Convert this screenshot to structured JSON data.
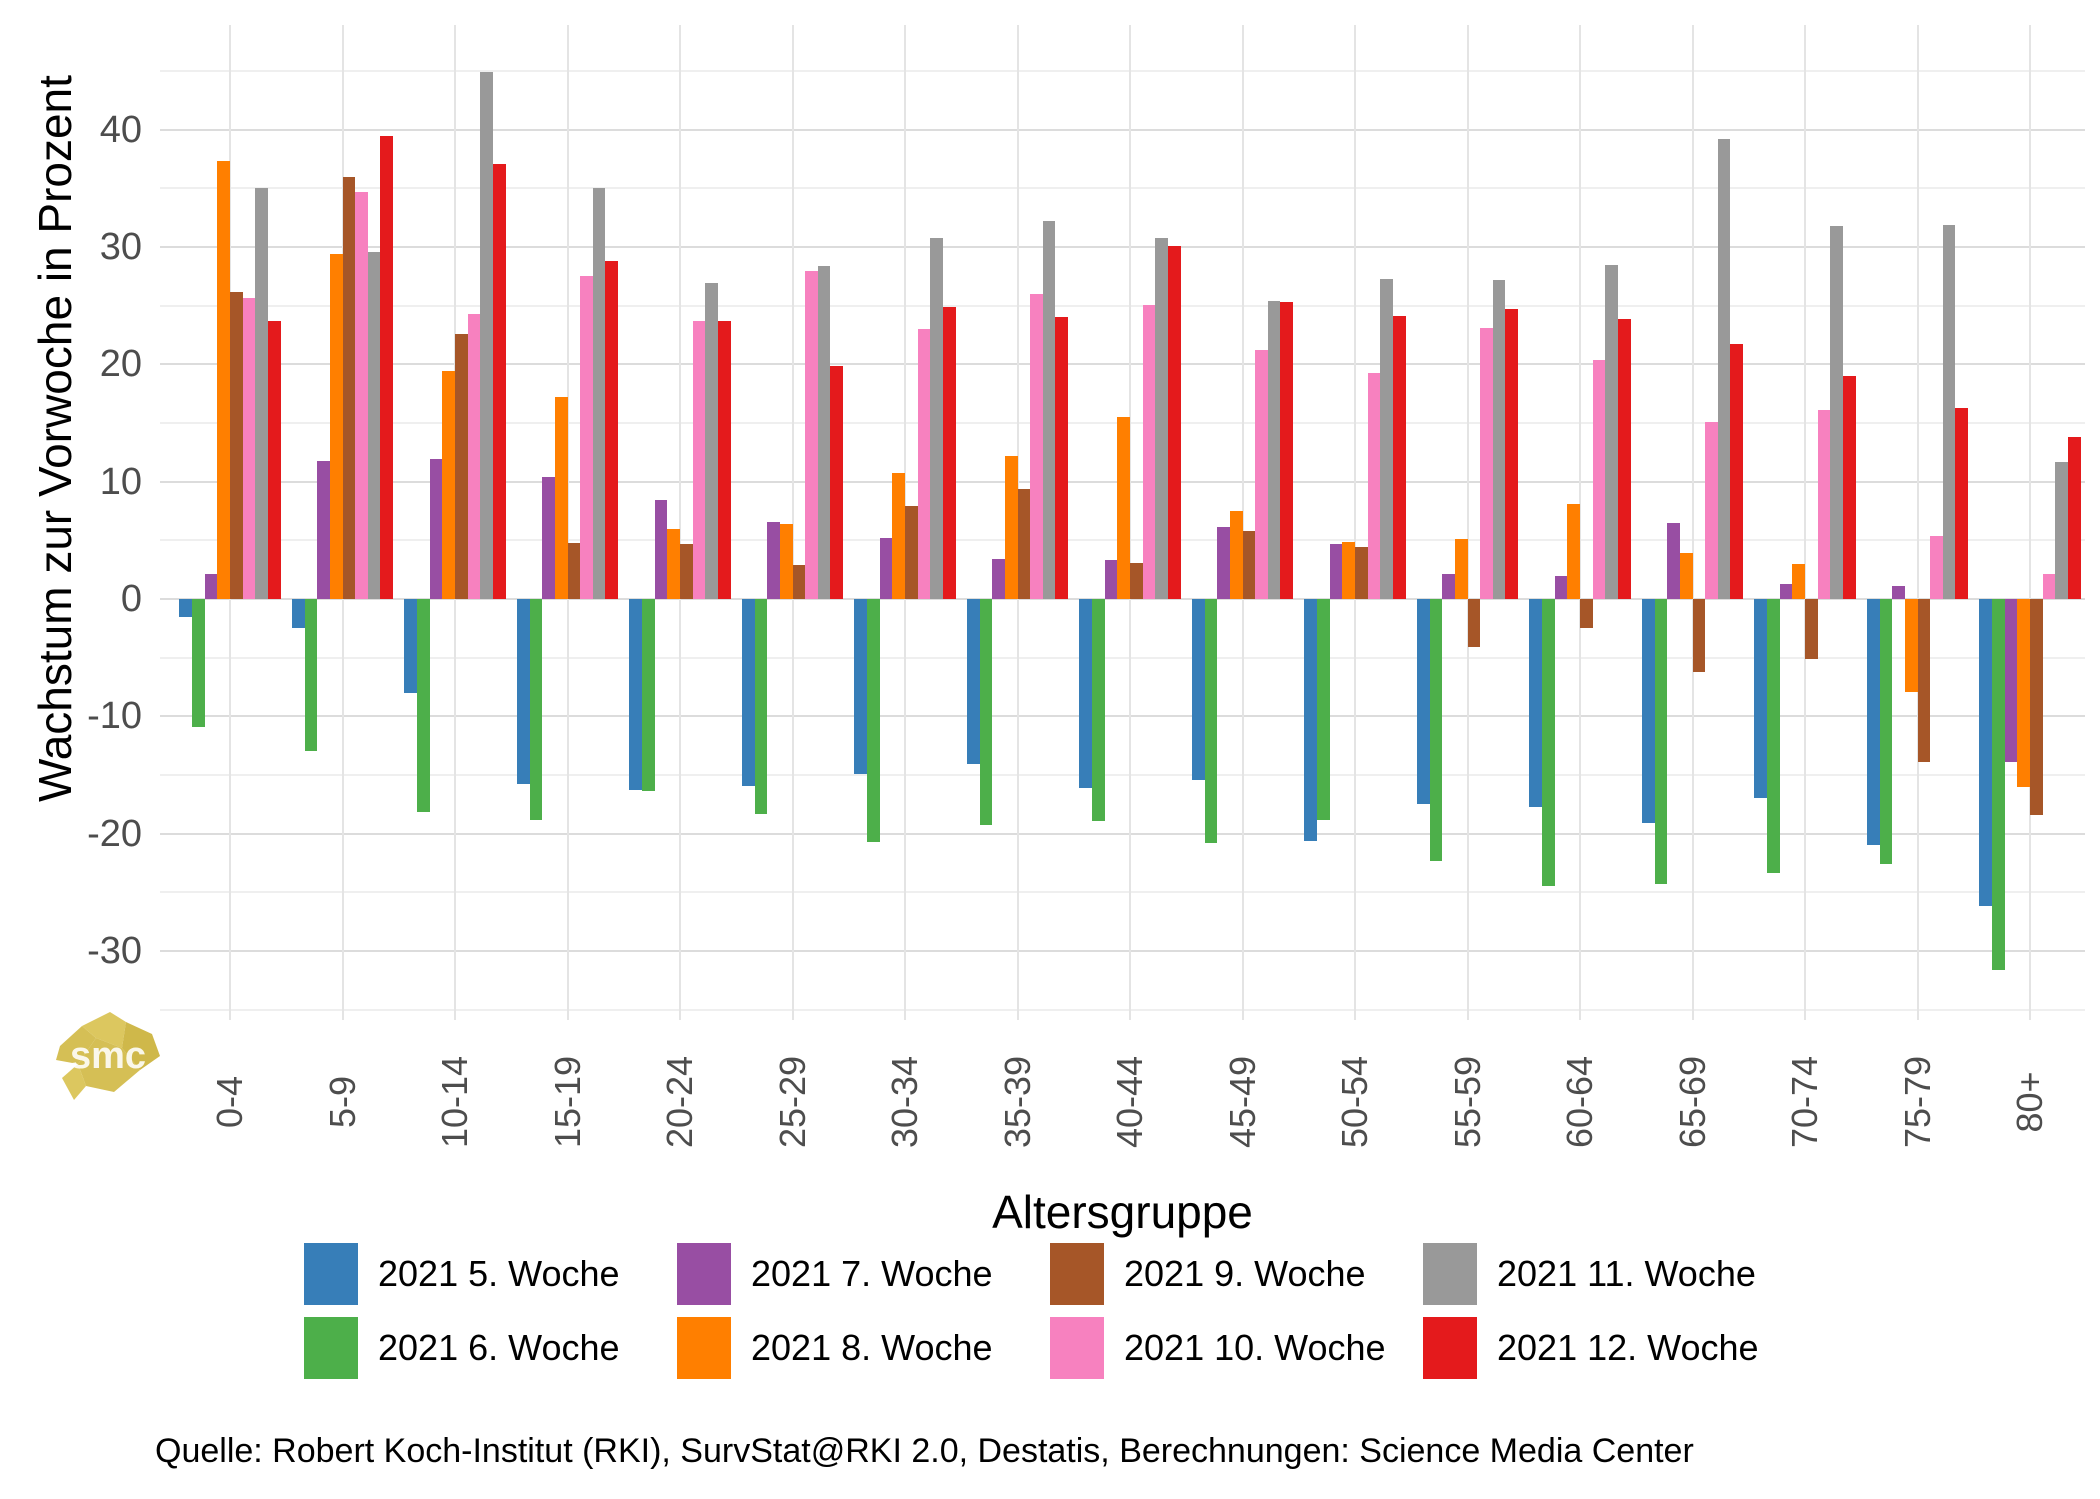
{
  "chart_data": {
    "type": "bar",
    "title": "",
    "xlabel": "Altersgruppe",
    "ylabel": "Wachstum zur Vorwoche in Prozent",
    "categories": [
      "0-4",
      "5-9",
      "10-14",
      "15-19",
      "20-24",
      "25-29",
      "30-34",
      "35-39",
      "40-44",
      "45-49",
      "50-54",
      "55-59",
      "60-64",
      "65-69",
      "70-74",
      "75-79",
      "80+"
    ],
    "series": [
      {
        "name": "2021 5. Woche",
        "color": "#377EB8",
        "values": [
          -1.5,
          -2.5,
          -8.0,
          -15.8,
          -16.3,
          -15.9,
          -14.9,
          -14.1,
          -16.1,
          -15.4,
          -20.6,
          -17.5,
          -17.7,
          -19.1,
          -17.0,
          -21.0,
          -26.2
        ]
      },
      {
        "name": "2021 6. Woche",
        "color": "#4DAF4A",
        "values": [
          -10.9,
          -13.0,
          -18.2,
          -18.8,
          -16.4,
          -18.3,
          -20.7,
          -19.3,
          -18.9,
          -20.8,
          -18.8,
          -22.3,
          -24.5,
          -24.3,
          -23.4,
          -22.6,
          -31.6
        ]
      },
      {
        "name": "2021 7. Woche",
        "color": "#984EA3",
        "values": [
          2.1,
          11.8,
          11.9,
          10.4,
          8.4,
          6.6,
          5.2,
          3.4,
          3.3,
          6.1,
          4.7,
          2.1,
          2.0,
          6.5,
          1.3,
          1.1,
          -13.9
        ]
      },
      {
        "name": "2021 8. Woche",
        "color": "#FF7F00",
        "values": [
          37.3,
          29.4,
          19.4,
          17.2,
          6.0,
          6.4,
          10.7,
          12.2,
          15.5,
          7.5,
          4.9,
          5.1,
          8.1,
          3.9,
          3.0,
          -7.9,
          -16.0
        ]
      },
      {
        "name": "2021 9. Woche",
        "color": "#A65628",
        "values": [
          26.2,
          36.0,
          22.6,
          4.8,
          4.7,
          2.9,
          7.9,
          9.4,
          3.1,
          5.8,
          4.4,
          -4.1,
          -2.5,
          -6.2,
          -5.1,
          -13.9,
          -18.4
        ]
      },
      {
        "name": "2021 10. Woche",
        "color": "#F781BF",
        "values": [
          25.7,
          34.7,
          24.3,
          27.5,
          23.7,
          28.0,
          23.0,
          26.0,
          25.1,
          21.2,
          19.3,
          23.1,
          20.4,
          15.1,
          16.1,
          5.4,
          2.1
        ]
      },
      {
        "name": "2021 11. Woche",
        "color": "#999999",
        "values": [
          35.0,
          29.6,
          44.9,
          35.0,
          26.9,
          28.4,
          30.8,
          32.2,
          30.8,
          25.4,
          27.3,
          27.2,
          28.5,
          39.2,
          31.8,
          31.9,
          11.7
        ]
      },
      {
        "name": "2021 12. Woche",
        "color": "#E41A1C",
        "values": [
          23.7,
          39.5,
          37.1,
          28.8,
          23.7,
          19.9,
          24.9,
          24.0,
          30.1,
          25.3,
          24.1,
          24.7,
          23.9,
          21.7,
          19.0,
          16.3,
          13.8
        ]
      }
    ],
    "y_ticks": [
      40,
      30,
      20,
      10,
      0,
      -10,
      -20,
      -30
    ],
    "ylim": [
      -35.9,
      48.9
    ],
    "grid": true,
    "legend_position": "bottom"
  },
  "footer": {
    "text": "Quelle: Robert Koch-Institut (RKI), SurvStat@RKI 2.0, Destatis, Berechnungen: Science Media Center"
  },
  "logo": {
    "text": "smc",
    "color": "#D5BF55"
  }
}
